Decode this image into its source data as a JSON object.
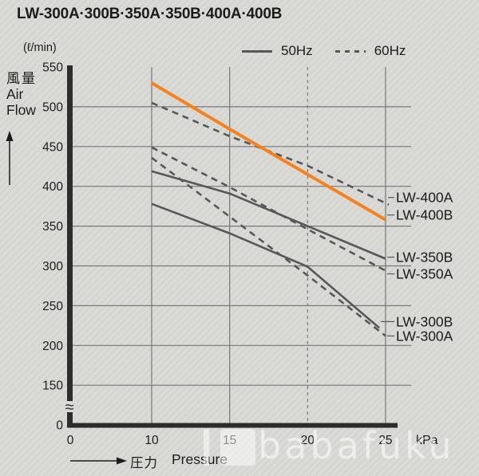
{
  "title": "LW-300A·300B·350A·350B·400A·400B",
  "legend": {
    "items": [
      {
        "label": "50Hz",
        "style": "solid"
      },
      {
        "label": "60Hz",
        "style": "dashed"
      }
    ]
  },
  "y_axis": {
    "unit": "(ℓ/min)",
    "label_jp": "風量",
    "label_en_line1": "Air",
    "label_en_line2": "Flow"
  },
  "x_axis": {
    "label_jp": "圧力",
    "label_en": "Pressure",
    "unit": "kPa"
  },
  "watermark": {
    "text": "babafuku"
  },
  "colors": {
    "accent_orange": "#f5821f",
    "curve_gray": "#58585a",
    "grid": "#787878",
    "axis": "#2d2d2d",
    "text": "#1c1c1c",
    "background": "#d9dad5"
  },
  "chart_data": {
    "type": "line",
    "title": "LW-300A·300B·350A·350B·400A·400B",
    "xlabel": "圧力 Pressure (kPa)",
    "ylabel": "風量 Air Flow (ℓ/min)",
    "x_ticks": [
      0,
      10,
      15,
      20,
      25
    ],
    "y_ticks": [
      0,
      150,
      200,
      250,
      300,
      350,
      400,
      450,
      500,
      550
    ],
    "xlim": [
      0,
      27
    ],
    "ylim": [
      0,
      550
    ],
    "y_axis_break_between": [
      0,
      150
    ],
    "grid": {
      "h": [
        150,
        200,
        250,
        300,
        350,
        400,
        450,
        500
      ],
      "v": [
        {
          "x": 10,
          "dashed": false
        },
        {
          "x": 15,
          "dashed": false
        },
        {
          "x": 20,
          "dashed": true
        },
        {
          "x": 25,
          "dashed": false
        }
      ]
    },
    "legend_position": "top",
    "series": [
      {
        "name": "LW-400A",
        "frequency": "60Hz",
        "style": "dashed",
        "color": "#58585a",
        "points": [
          [
            10,
            505
          ],
          [
            15,
            463
          ],
          [
            20,
            426
          ],
          [
            25.2,
            377
          ]
        ],
        "label_v": 386
      },
      {
        "name": "LW-350A",
        "frequency": "60Hz",
        "style": "dashed",
        "color": "#58585a",
        "points": [
          [
            10,
            449
          ],
          [
            15,
            399
          ],
          [
            20,
            346
          ],
          [
            25,
            294
          ]
        ],
        "label_v": 290
      },
      {
        "name": "LW-300A",
        "frequency": "60Hz",
        "style": "dashed",
        "color": "#58585a",
        "points": [
          [
            10,
            436
          ],
          [
            15,
            362
          ],
          [
            20,
            288
          ],
          [
            25,
            212
          ]
        ],
        "label_v": 212
      },
      {
        "name": "LW-350B",
        "frequency": "50Hz",
        "style": "solid",
        "color": "#58585a",
        "points": [
          [
            10,
            419
          ],
          [
            15,
            391
          ],
          [
            20,
            350
          ],
          [
            25,
            309
          ]
        ],
        "label_v": 311
      },
      {
        "name": "LW-300B",
        "frequency": "50Hz",
        "style": "solid",
        "color": "#58585a",
        "points": [
          [
            10,
            378
          ],
          [
            15,
            341
          ],
          [
            20,
            299
          ],
          [
            24.6,
            222
          ]
        ],
        "label_v": 230
      },
      {
        "name": "LW-400B",
        "frequency": "50Hz",
        "style": "solid",
        "color": "#f5821f",
        "points": [
          [
            10,
            530
          ],
          [
            15,
            472
          ],
          [
            20,
            415
          ],
          [
            25,
            358
          ]
        ],
        "label_v": 364
      }
    ]
  }
}
